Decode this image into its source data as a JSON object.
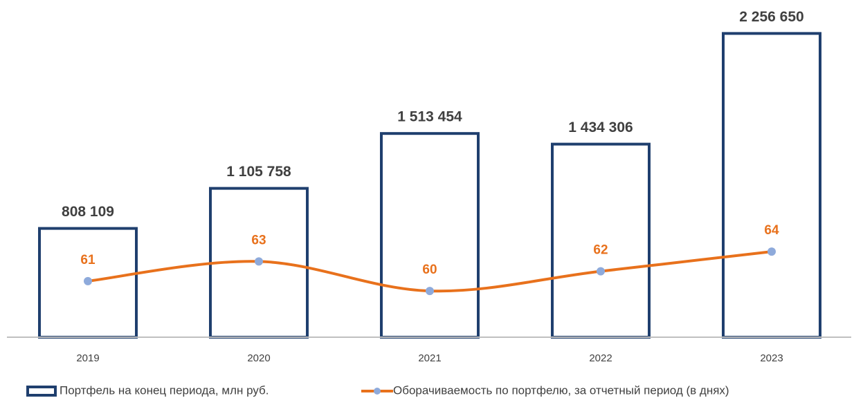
{
  "chart_data": {
    "type": "bar-line",
    "categories": [
      "2019",
      "2020",
      "2021",
      "2022",
      "2023"
    ],
    "series": [
      {
        "name": "Портфель на конец периода, млн руб.",
        "type": "bar",
        "color": "#1f3f6e",
        "values": [
          808109,
          1105758,
          1513454,
          1434306,
          2256650
        ],
        "value_labels": [
          "808 109",
          "1 105 758",
          "1 513 454",
          "1 434 306",
          "2 256 650"
        ]
      },
      {
        "name": "Оборачиваемость по портфелю, за отчетный период (в днях)",
        "type": "line",
        "axis": "y2",
        "color": "#e8711c",
        "marker_color": "#8eaadb",
        "values": [
          61,
          63,
          60,
          62,
          64
        ]
      }
    ],
    "ylim": [
      0,
      2500000
    ],
    "y2lim": [
      55.3,
      89.5
    ],
    "legend": "bottom"
  }
}
